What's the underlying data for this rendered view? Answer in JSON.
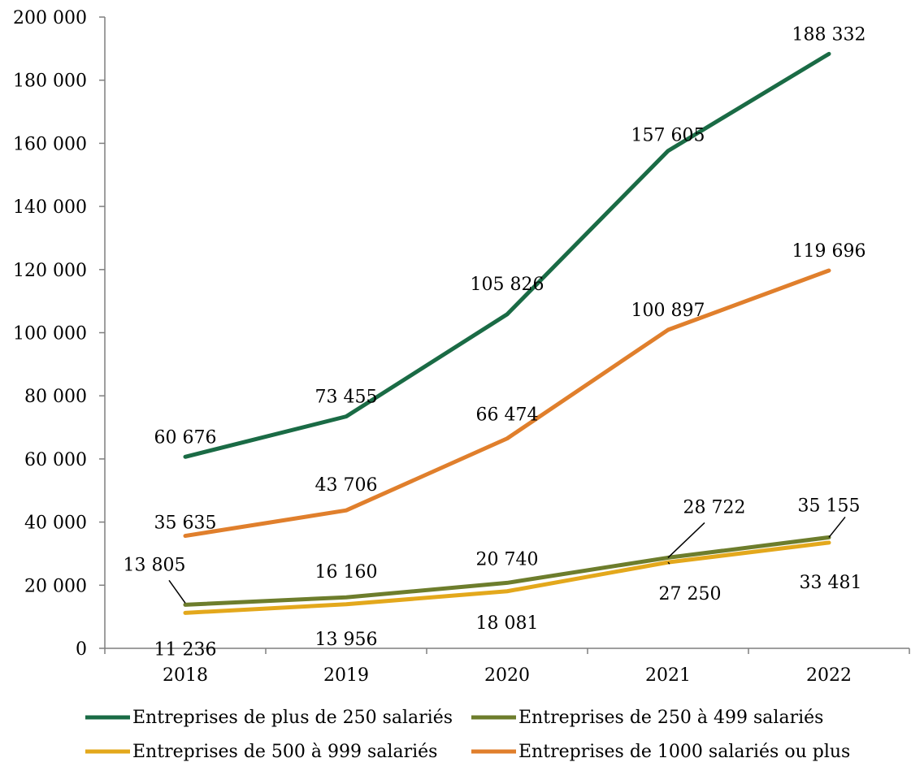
{
  "chart_data": {
    "type": "line",
    "title": "",
    "xlabel": "",
    "ylabel": "",
    "categories": [
      "2018",
      "2019",
      "2020",
      "2021",
      "2022"
    ],
    "ylim": [
      0,
      200000
    ],
    "yticks": [
      0,
      20000,
      40000,
      60000,
      80000,
      100000,
      120000,
      140000,
      160000,
      180000,
      200000
    ],
    "ytick_labels": [
      "0",
      "20 000",
      "40 000",
      "60 000",
      "80 000",
      "100 000",
      "120 000",
      "140 000",
      "160 000",
      "180 000",
      "200 000"
    ],
    "grid": false,
    "legend_position": "bottom",
    "series": [
      {
        "name": "Entreprises de plus de 250 salariés",
        "color": "#1a6b45",
        "values": [
          60676,
          73455,
          105826,
          157605,
          188332
        ],
        "labels": [
          "60 676",
          "73 455",
          "105 826",
          "157 605",
          "188 332"
        ]
      },
      {
        "name": "Entreprises de 250 à 499 salariés",
        "color": "#6d7d2c",
        "values": [
          13805,
          16160,
          20740,
          28722,
          35155
        ],
        "labels": [
          "13 805",
          "16 160",
          "20 740",
          "28 722",
          "35 155"
        ]
      },
      {
        "name": "Entreprises de 500 à 999 salariés",
        "color": "#e3a81c",
        "values": [
          11236,
          13956,
          18081,
          27250,
          33481
        ],
        "labels": [
          "11 236",
          "13 956",
          "18 081",
          "27 250",
          "33 481"
        ]
      },
      {
        "name": "Entreprises de 1000 salariés ou plus",
        "color": "#e07f2c",
        "values": [
          35635,
          43706,
          66474,
          100897,
          119696
        ],
        "labels": [
          "35 635",
          "43 706",
          "66 474",
          "100 897",
          "119 696"
        ]
      }
    ]
  }
}
